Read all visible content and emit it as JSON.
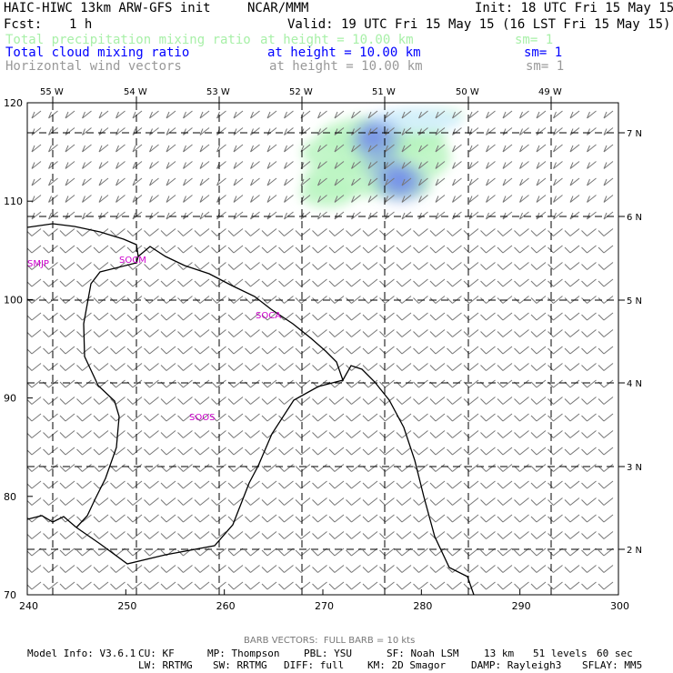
{
  "header": {
    "title": "HAIC-HIWC 13km ARW-GFS init",
    "org": "NCAR/MMM",
    "init": "Init: 18 UTC Fri 15 May 15",
    "fcst_label": "Fcst:",
    "fcst_value": "1 h",
    "valid": "Valid: 19 UTC Fri 15 May 15 (16 LST Fri 15 May 15)"
  },
  "fields": [
    {
      "name": "Total precipitation mixing ratio",
      "height": "at height = 10.00 km",
      "sm": "sm= 1",
      "color": "#a8f0a8"
    },
    {
      "name": "Total cloud mixing ratio",
      "height": "at height = 10.00 km",
      "sm": "sm= 1",
      "color": "#0000ff"
    },
    {
      "name": "Horizontal wind vectors",
      "height": "at height = 10.00 km",
      "sm": "sm= 1",
      "color": "#999999"
    }
  ],
  "map": {
    "lon_labels": [
      "55 W",
      "54 W",
      "53 W",
      "52 W",
      "51 W",
      "50 W",
      "49 W"
    ],
    "lat_labels": [
      "7 N",
      "6 N",
      "5 N",
      "4 N",
      "3 N",
      "2 N"
    ],
    "x_ticks": [
      "240",
      "250",
      "260",
      "270",
      "280",
      "290",
      "300"
    ],
    "y_ticks": [
      "120",
      "110",
      "100",
      "90",
      "80",
      "70"
    ],
    "x_range": [
      240,
      300
    ],
    "y_range": [
      70,
      120
    ],
    "region_labels": [
      "SMJP",
      "SOCM",
      "SOCA",
      "SOOS"
    ],
    "label_color": "#cc00cc",
    "precip_color": "#b8f5c0",
    "cloud_color": "#6f86ee"
  },
  "footer": {
    "barb_note": "BARB VECTORS:  FULL BARB = 10 kts",
    "model_info": "Model Info: V3.6.1",
    "cu": "CU: KF",
    "mp": "MP: Thompson",
    "pbl": "PBL: YSU",
    "sf": "SF: Noah LSM",
    "res": "13 km",
    "levels": "51 levels",
    "dt": "60 sec",
    "lw": "LW: RRTMG",
    "sw": "SW: RRTMG",
    "diff": "DIFF: full",
    "km": "KM: 2D Smagor",
    "damp": "DAMP: Rayleigh3",
    "sflay": "SFLAY: MM5"
  }
}
